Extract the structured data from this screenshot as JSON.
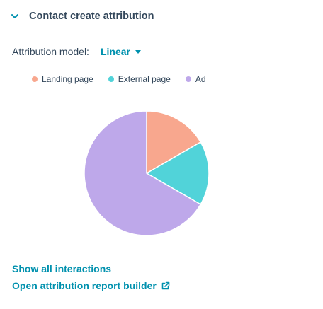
{
  "section": {
    "title": "Contact create attribution",
    "collapse_icon": "chevron-down-icon"
  },
  "attribution_model": {
    "label": "Attribution model:",
    "selected": "Linear"
  },
  "colors": {
    "landing_page": "#f8a78e",
    "external_page": "#51d3d9",
    "ad": "#bea8ea",
    "link": "#0091ae",
    "text": "#33475b"
  },
  "chart_data": {
    "type": "pie",
    "title": "",
    "legend_position": "top",
    "categories": [
      "Landing page",
      "External page",
      "Ad"
    ],
    "values": [
      0.1667,
      0.1667,
      0.6667
    ],
    "colors": [
      "#f8a78e",
      "#51d3d9",
      "#bea8ea"
    ]
  },
  "links": {
    "show_interactions": "Show all interactions",
    "open_builder": "Open attribution report builder",
    "external_icon": "external-link-icon"
  }
}
